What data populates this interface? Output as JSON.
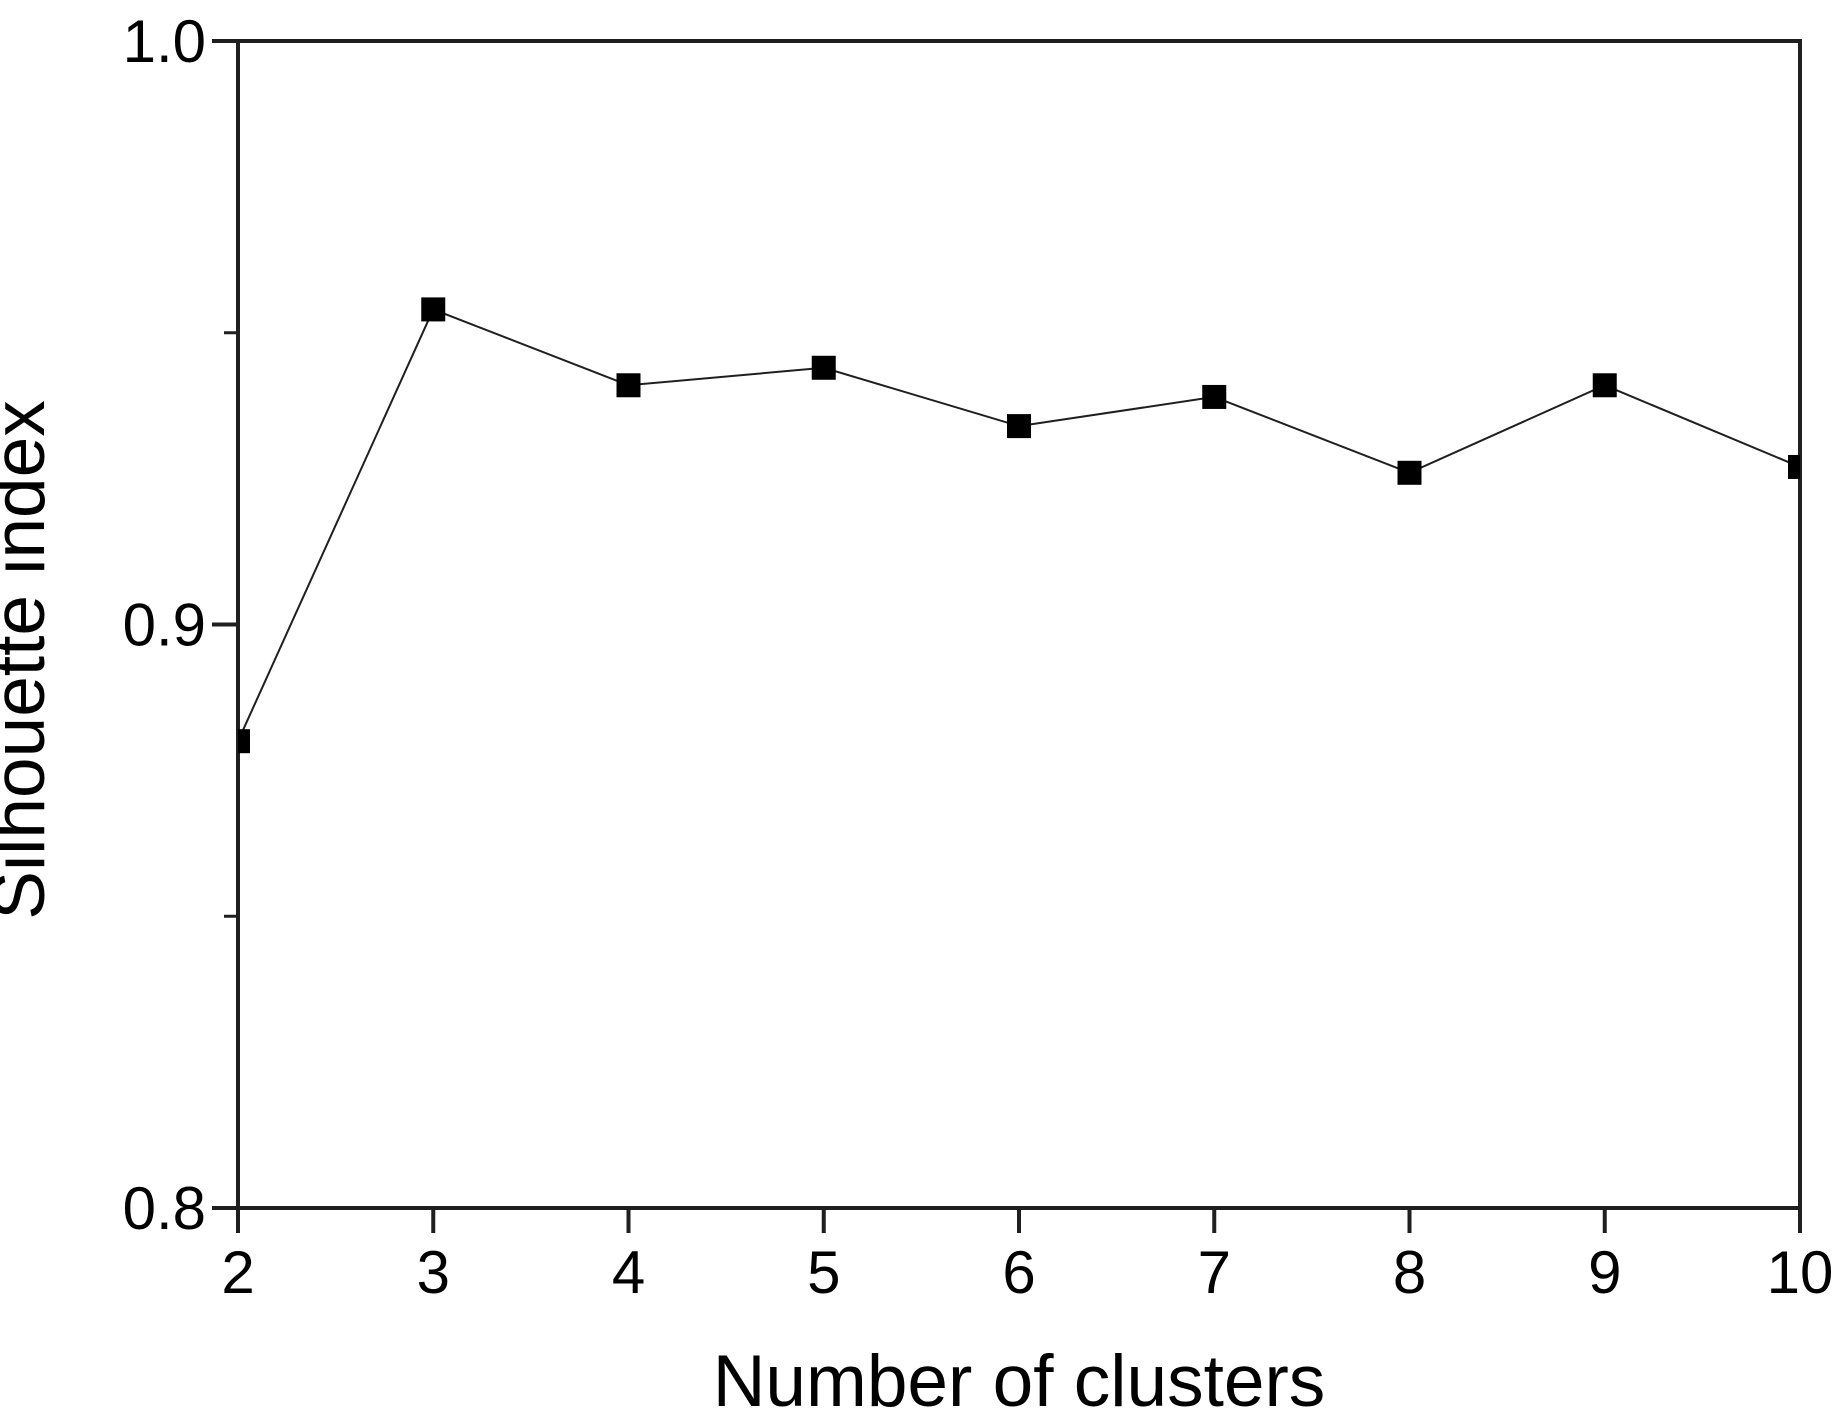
{
  "figure": {
    "description": "Line plot of silhouette index versus number of clusters, black filled square markers connected by a thin black line inside a rectangular axes box"
  },
  "chart_data": {
    "type": "line",
    "title": "",
    "xlabel": "Number of clusters",
    "ylabel": "Silhouette index",
    "x": [
      2,
      3,
      4,
      5,
      6,
      7,
      8,
      9,
      10
    ],
    "values": [
      0.88,
      0.954,
      0.941,
      0.944,
      0.934,
      0.939,
      0.926,
      0.941,
      0.927
    ],
    "series_name": "Silhouette index",
    "xlim": [
      2,
      10
    ],
    "ylim": [
      0.8,
      1.0
    ],
    "x_tick_labels": [
      "2",
      "3",
      "4",
      "5",
      "6",
      "7",
      "8",
      "9",
      "10"
    ],
    "y_major_ticks": [
      1.0,
      0.9,
      0.8
    ],
    "y_tick_labels": [
      "1.0",
      "0.9",
      "0.8"
    ],
    "y_minor_ticks": [
      0.95,
      0.85
    ],
    "grid": false,
    "legend_position": "none",
    "marker": "filled-square",
    "marker_size_px": 24,
    "line_style": "solid",
    "colors": {
      "line": "#1f1f1f",
      "marker": "#000000",
      "axis": "#1f1f1f",
      "text": "#000000",
      "background": "#ffffff"
    }
  }
}
